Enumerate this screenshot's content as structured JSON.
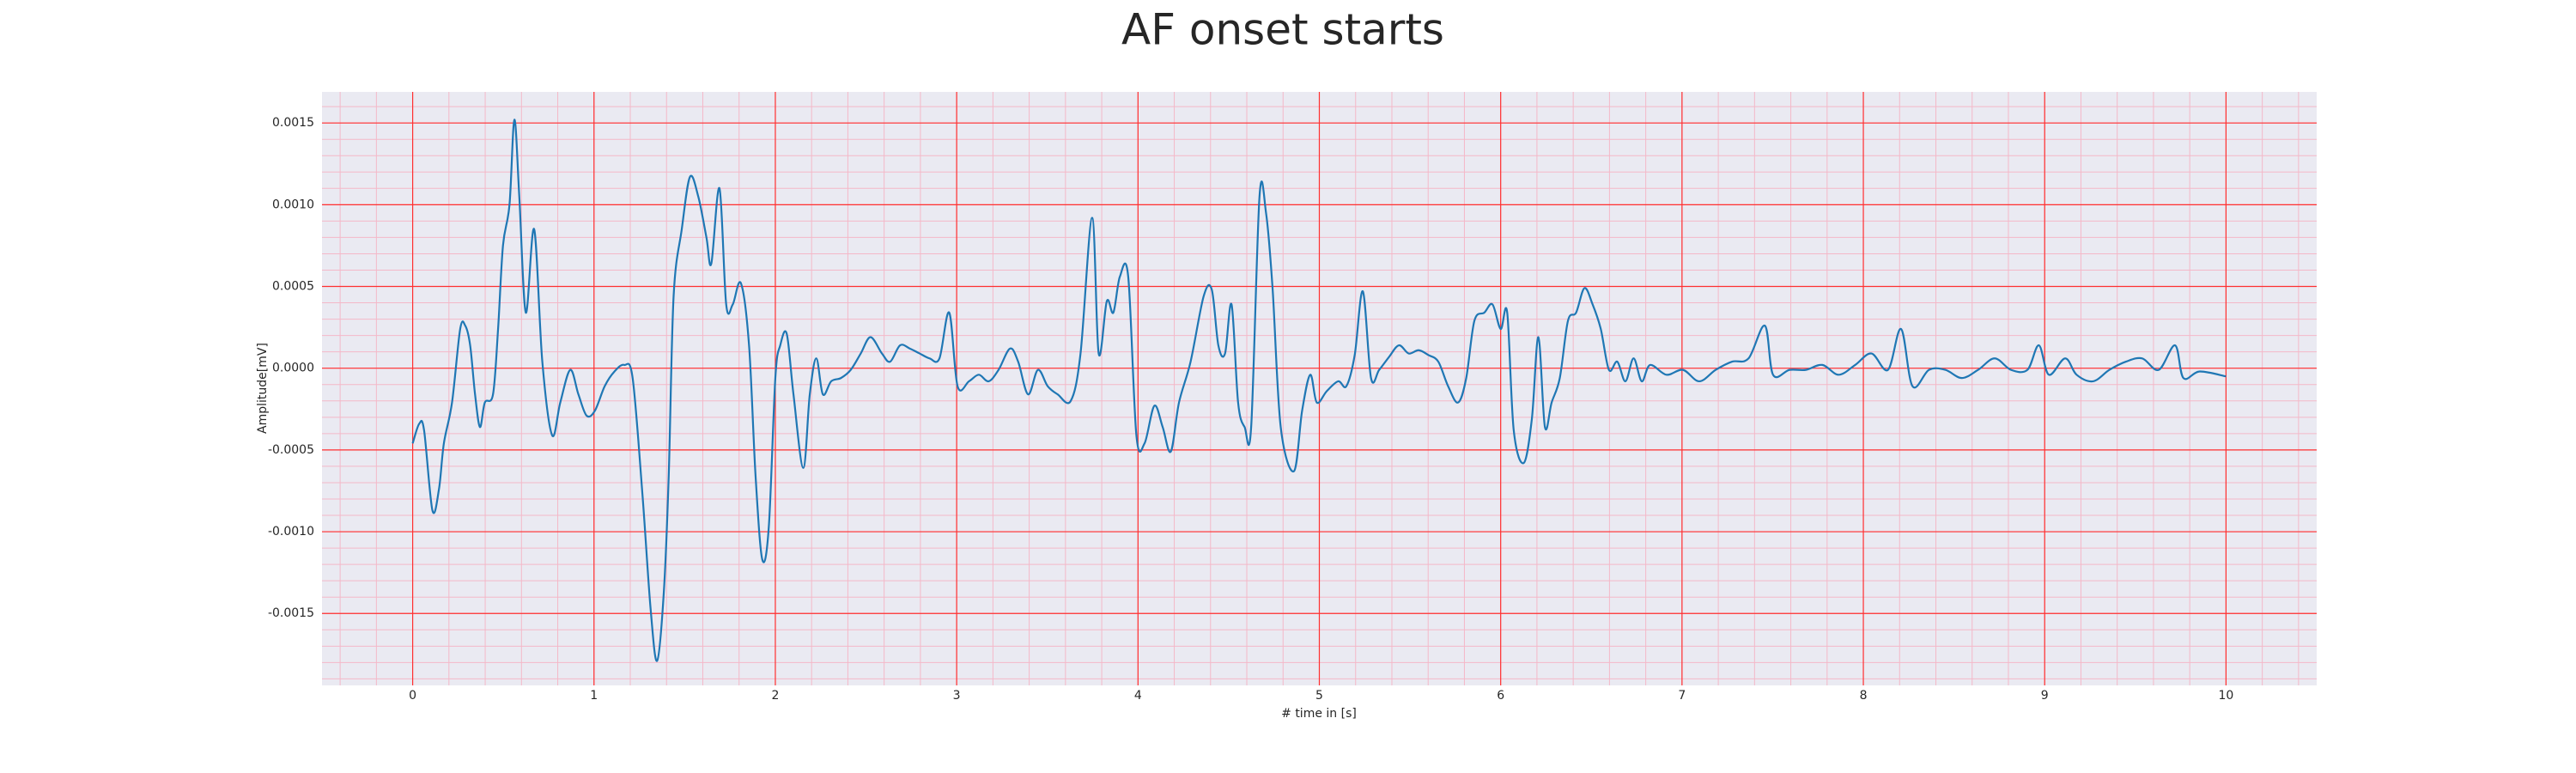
{
  "chart_data": {
    "type": "line",
    "title": "AF onset starts",
    "xlabel": "# time in [s]",
    "ylabel": "Amplitude[mV]",
    "xlim": [
      -0.5,
      10.5
    ],
    "ylim": [
      -0.00194,
      0.00169
    ],
    "xticks": [
      0,
      1,
      2,
      3,
      4,
      5,
      6,
      7,
      8,
      9,
      10
    ],
    "yticks": [
      {
        "value": -0.0015,
        "label": "-0.0015"
      },
      {
        "value": -0.001,
        "label": "-0.0010"
      },
      {
        "value": -0.0005,
        "label": "-0.0005"
      },
      {
        "value": 0,
        "label": "0.0000"
      },
      {
        "value": 0.0005,
        "label": "0.0005"
      },
      {
        "value": 0.001,
        "label": "0.0010"
      },
      {
        "value": 0.0015,
        "label": "0.0015"
      }
    ],
    "grid": true,
    "grid_color": "#ff3030",
    "minor_grid": true,
    "minor_divisions": 5,
    "minor_grid_color": "#f4b8c8",
    "background": "#eaeaf2",
    "x": [
      0,
      0.036,
      0.063,
      0.109,
      0.145,
      0.172,
      0.217,
      0.262,
      0.29,
      0.317,
      0.344,
      0.371,
      0.398,
      0.443,
      0.471,
      0.498,
      0.534,
      0.561,
      0.588,
      0.624,
      0.67,
      0.715,
      0.769,
      0.814,
      0.869,
      0.914,
      0.959,
      1.005,
      1.059,
      1.113,
      1.167,
      1.213,
      1.267,
      1.312,
      1.348,
      1.385,
      1.412,
      1.439,
      1.484,
      1.529,
      1.575,
      1.62,
      1.647,
      1.692,
      1.729,
      1.765,
      1.81,
      1.855,
      1.891,
      1.928,
      1.964,
      2,
      2.027,
      2.063,
      2.1,
      2.154,
      2.19,
      2.226,
      2.262,
      2.308,
      2.362,
      2.416,
      2.471,
      2.525,
      2.588,
      2.633,
      2.688,
      2.742,
      2.796,
      2.851,
      2.905,
      2.959,
      3.005,
      3.068,
      3.122,
      3.176,
      3.231,
      3.294,
      3.339,
      3.394,
      3.448,
      3.502,
      3.557,
      3.629,
      3.683,
      3.747,
      3.783,
      3.828,
      3.864,
      3.9,
      3.946,
      3.991,
      4.036,
      4.09,
      4.136,
      4.181,
      4.226,
      4.29,
      4.362,
      4.407,
      4.443,
      4.48,
      4.516,
      4.552,
      4.588,
      4.624,
      4.67,
      4.706,
      4.742,
      4.787,
      4.86,
      4.905,
      4.95,
      4.986,
      5.041,
      5.104,
      5.149,
      5.195,
      5.24,
      5.285,
      5.33,
      5.385,
      5.439,
      5.493,
      5.548,
      5.602,
      5.656,
      5.71,
      5.765,
      5.81,
      5.855,
      5.91,
      5.955,
      6,
      6.036,
      6.072,
      6.127,
      6.172,
      6.208,
      6.244,
      6.281,
      6.326,
      6.371,
      6.416,
      6.462,
      6.507,
      6.552,
      6.597,
      6.643,
      6.688,
      6.733,
      6.778,
      6.824,
      6.914,
      7.005,
      7.095,
      7.186,
      7.276,
      7.367,
      7.457,
      7.502,
      7.593,
      7.683,
      7.774,
      7.864,
      7.955,
      8.045,
      8.136,
      8.208,
      8.271,
      8.362,
      8.452,
      8.543,
      8.633,
      8.724,
      8.814,
      8.905,
      8.968,
      9.023,
      9.113,
      9.176,
      9.267,
      9.357,
      9.448,
      9.538,
      9.629,
      9.719,
      9.765,
      9.855,
      10
    ],
    "series": [
      {
        "color": "#1f77b4",
        "values": [
          -0.00046,
          -0.00034,
          -0.00038,
          -0.00087,
          -0.00074,
          -0.00046,
          -0.00021,
          0.00024,
          0.00026,
          0.00014,
          -0.00016,
          -0.00036,
          -0.00021,
          -0.00016,
          0.00024,
          0.00075,
          0.001,
          0.00152,
          0.00105,
          0.00034,
          0.00085,
          4e-05,
          -0.00041,
          -0.00021,
          -1e-05,
          -0.00016,
          -0.00029,
          -0.00026,
          -0.00011,
          -2e-05,
          2e-05,
          -6e-05,
          -0.00077,
          -0.00147,
          -0.00179,
          -0.00137,
          -0.00066,
          0.00044,
          0.00085,
          0.00117,
          0.00105,
          0.0008,
          0.00064,
          0.0011,
          0.00039,
          0.00039,
          0.00052,
          0.00014,
          -0.00066,
          -0.00117,
          -0.00097,
          -6e-05,
          0.00014,
          0.00021,
          -0.00016,
          -0.00061,
          -0.00016,
          6e-05,
          -0.00016,
          -8e-05,
          -6e-05,
          -1e-05,
          9e-05,
          0.00019,
          9e-05,
          4e-05,
          0.00014,
          0.00012,
          9e-05,
          6e-05,
          6e-05,
          0.00034,
          -0.00011,
          -8e-05,
          -4e-05,
          -8e-05,
          -1e-05,
          0.00012,
          4e-05,
          -0.00016,
          -1e-05,
          -0.00011,
          -0.00016,
          -0.0002,
          9e-05,
          0.00092,
          9e-05,
          0.00041,
          0.00034,
          0.00056,
          0.00056,
          -0.00041,
          -0.00046,
          -0.00023,
          -0.00036,
          -0.00051,
          -0.00021,
          4e-05,
          0.00044,
          0.00048,
          0.00014,
          9e-05,
          0.00039,
          -0.00021,
          -0.00036,
          -0.00036,
          0.00105,
          0.00095,
          0.00049,
          -0.00036,
          -0.00063,
          -0.00026,
          -4e-05,
          -0.00021,
          -0.00014,
          -8e-05,
          -0.00011,
          8e-05,
          0.00047,
          -6e-05,
          -1e-05,
          7e-05,
          0.00014,
          9e-05,
          0.00011,
          8e-05,
          4e-05,
          -0.00011,
          -0.00021,
          -6e-05,
          0.00029,
          0.00034,
          0.00039,
          0.00024,
          0.00034,
          -0.00038,
          -0.00058,
          -0.00031,
          0.00019,
          -0.00036,
          -0.00021,
          -6e-05,
          0.00029,
          0.00034,
          0.00049,
          0.00039,
          0.00024,
          -1e-05,
          4e-05,
          -8e-05,
          6e-05,
          -8e-05,
          2e-05,
          -4e-05,
          -1e-05,
          -8e-05,
          -1e-05,
          4e-05,
          6e-05,
          0.00026,
          -4e-05,
          -1e-05,
          -1e-05,
          2e-05,
          -4e-05,
          2e-05,
          9e-05,
          -1e-05,
          0.00024,
          -0.00011,
          -1e-05,
          -1e-05,
          -6e-05,
          -1e-05,
          6e-05,
          -1e-05,
          -1e-05,
          0.00014,
          -4e-05,
          6e-05,
          -4e-05,
          -8e-05,
          -1e-05,
          4e-05,
          6e-05,
          -1e-05,
          0.00014,
          -6e-05,
          -2e-05,
          -5e-05
        ]
      }
    ]
  }
}
